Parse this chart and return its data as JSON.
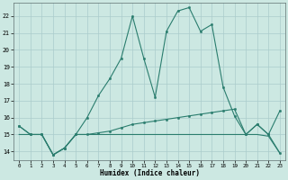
{
  "xlabel": "Humidex (Indice chaleur)",
  "x": [
    0,
    1,
    2,
    3,
    4,
    5,
    6,
    7,
    8,
    9,
    10,
    11,
    12,
    13,
    14,
    15,
    16,
    17,
    18,
    19,
    20,
    21,
    22,
    23
  ],
  "line_main": [
    15.5,
    15.0,
    15.0,
    13.8,
    14.2,
    15.0,
    16.0,
    17.3,
    18.3,
    19.5,
    22.0,
    19.5,
    17.2,
    21.1,
    22.3,
    22.5,
    21.1,
    21.5,
    17.8,
    16.1,
    15.0,
    15.6,
    15.0,
    13.9
  ],
  "line_mid": [
    15.5,
    15.0,
    15.0,
    13.8,
    14.2,
    15.0,
    15.0,
    15.1,
    15.2,
    15.4,
    15.6,
    15.7,
    15.8,
    15.9,
    16.0,
    16.1,
    16.2,
    16.3,
    16.4,
    16.5,
    15.0,
    15.6,
    15.0,
    16.4
  ],
  "line_flat": [
    15.0,
    15.0,
    15.0,
    13.8,
    14.2,
    15.0,
    15.0,
    15.0,
    15.0,
    15.0,
    15.0,
    15.0,
    15.0,
    15.0,
    15.0,
    15.0,
    15.0,
    15.0,
    15.0,
    15.0,
    15.0,
    15.0,
    14.9,
    13.9
  ],
  "line_color": "#2a7d6e",
  "bg_color": "#cce8e2",
  "grid_color": "#aacccc",
  "ylim": [
    13.5,
    22.8
  ],
  "xlim": [
    -0.5,
    23.5
  ],
  "yticks": [
    14,
    15,
    16,
    17,
    18,
    19,
    20,
    21,
    22
  ],
  "xticks": [
    0,
    1,
    2,
    3,
    4,
    5,
    6,
    7,
    8,
    9,
    10,
    11,
    12,
    13,
    14,
    15,
    16,
    17,
    18,
    19,
    20,
    21,
    22,
    23
  ]
}
